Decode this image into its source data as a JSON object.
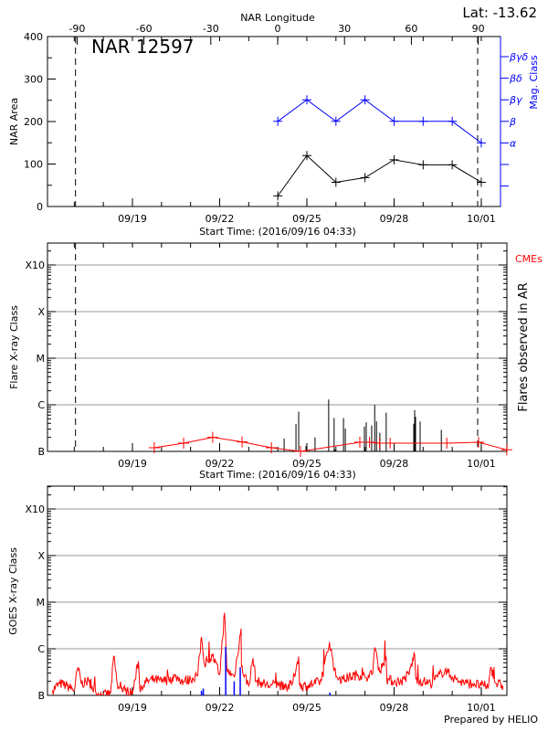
{
  "chart_data": [
    {
      "type": "line",
      "title": "NAR 12597",
      "lat_label": "Lat: -13.62",
      "xlabel": "Start Time: (2016/09/16 04:33)",
      "ylabel": "NAR Area",
      "y2label": "Mag. Class",
      "top_axis_label": "NAR Longitude",
      "top_axis_ticks": [
        "-90",
        "-60",
        "-30",
        "0",
        "30",
        "60",
        "90"
      ],
      "top_axis_values": [
        -90,
        -60,
        -30,
        0,
        30,
        60,
        90
      ],
      "x_tick_labels": [
        "09/19",
        "09/22",
        "09/25",
        "09/28",
        "10/01"
      ],
      "x_tick_dates": [
        "2016-09-19T00:00",
        "2016-09-22T00:00",
        "2016-09-25T00:00",
        "2016-09-28T00:00",
        "2016-10-01T00:00"
      ],
      "y_tick_labels": [
        "0",
        "100",
        "200",
        "300",
        "400"
      ],
      "ylim": [
        0,
        400
      ],
      "y2_classes": [
        "βγδ",
        "βδ",
        "βγ",
        "β",
        "α",
        "",
        ""
      ],
      "limb_lines": [
        "2016-09-17T01:00",
        "2016-09-30T21:00"
      ],
      "series": [
        {
          "name": "NAR Area",
          "color": "#000000",
          "x": [
            "2016-09-24T00:00",
            "2016-09-25T00:00",
            "2016-09-26T00:00",
            "2016-09-27T00:00",
            "2016-09-28T00:00",
            "2016-09-29T00:00",
            "2016-09-30T00:00",
            "2016-10-01T00:00"
          ],
          "values": [
            25,
            120,
            57,
            68,
            110,
            98,
            98,
            57
          ]
        },
        {
          "name": "Mag. Class",
          "color": "#0000ff",
          "x": [
            "2016-09-24T00:00",
            "2016-09-25T00:00",
            "2016-09-26T00:00",
            "2016-09-27T00:00",
            "2016-09-28T00:00",
            "2016-09-29T00:00",
            "2016-09-30T00:00",
            "2016-10-01T00:00"
          ],
          "values": [
            "β",
            "βγ",
            "β",
            "βγ",
            "β",
            "β",
            "β",
            "α"
          ]
        }
      ]
    },
    {
      "type": "bar",
      "xlabel": "Start Time: (2016/09/16 04:33)",
      "ylabel": "Flare X-ray Class",
      "y2label": "Flares observed in AR",
      "cme_label": "CMEs",
      "x_tick_labels": [
        "09/19",
        "09/22",
        "09/25",
        "09/28",
        "10/01"
      ],
      "y_tick_labels": [
        "B",
        "C",
        "M",
        "X",
        "X10"
      ],
      "y_scale": "log",
      "ylim": [
        1e-07,
        0.001
      ],
      "grid": true,
      "limb_lines": [
        "2016-09-17T01:00",
        "2016-09-30T21:00"
      ],
      "flares": {
        "color": "#000000",
        "x": [
          "2016-09-24T05:15",
          "2016-09-24T15:00",
          "2016-09-24T17:15",
          "2016-09-24T23:15",
          "2016-09-25T06:45",
          "2016-09-25T18:00",
          "2016-09-25T22:30",
          "2016-09-25T23:15",
          "2016-09-26T06:15",
          "2016-09-26T07:45",
          "2016-09-26T23:30",
          "2016-09-27T01:00",
          "2016-09-27T05:30",
          "2016-09-27T08:00",
          "2016-09-27T09:30",
          "2016-09-27T12:15",
          "2016-09-27T17:30",
          "2016-09-28T16:15",
          "2016-09-28T17:00",
          "2016-09-28T17:45",
          "2016-09-28T21:30",
          "2016-09-29T15:00"
        ],
        "values": [
          1.9e-07,
          3.9e-07,
          7.1e-07,
          1.3e-07,
          2e-07,
          1.3e-06,
          5.2e-07,
          1.1e-07,
          5.2e-07,
          3.1e-07,
          3.4e-07,
          4.2e-07,
          3.6e-07,
          1e-06,
          4.4e-07,
          2.5e-07,
          6.8e-07,
          3.9e-07,
          7.7e-07,
          5.5e-07,
          4.4e-07,
          2.9e-07
        ]
      },
      "cmes": {
        "name": "CMEs",
        "color": "#ff0000",
        "x": [
          "2016-09-19T18:00",
          "2016-09-20T18:15",
          "2016-09-21T18:15",
          "2016-09-22T18:30",
          "2016-09-23T18:45",
          "2016-09-24T18:45",
          "2016-09-26T19:45",
          "2016-09-27T03:45",
          "2016-09-27T12:00",
          "2016-09-27T20:45",
          "2016-09-29T19:30",
          "2016-09-30T21:45",
          "2016-10-01T21:00"
        ],
        "values": [
          1.2e-07,
          1.5e-07,
          2e-07,
          1.6e-07,
          1.2e-07,
          1e-07,
          1.57e-07,
          1.57e-07,
          1.5e-07,
          1.5e-07,
          1.5e-07,
          1.57e-07,
          1.08e-07
        ]
      }
    },
    {
      "type": "line",
      "ylabel": "GOES X-ray Class",
      "x_tick_labels": [
        "09/19",
        "09/22",
        "09/25",
        "09/28",
        "10/01"
      ],
      "y_tick_labels": [
        "B",
        "C",
        "M",
        "X",
        "X10"
      ],
      "y_scale": "log",
      "ylim": [
        1e-07,
        0.001
      ],
      "grid": true,
      "footer": "Prepared by HELIO",
      "goes_long": {
        "color": "#ff0000",
        "x": [
          "2016-09-16T06:00",
          "2016-09-16T12:00",
          "2016-09-16T18:00",
          "2016-09-17T00:00",
          "2016-09-17T03:00",
          "2016-09-17T06:00",
          "2016-09-17T12:00",
          "2016-09-17T18:00",
          "2016-09-18T00:00",
          "2016-09-18T06:00",
          "2016-09-18T08:30",
          "2016-09-18T12:00",
          "2016-09-18T18:00",
          "2016-09-19T00:00",
          "2016-09-19T05:00",
          "2016-09-19T06:00",
          "2016-09-19T12:00",
          "2016-09-19T18:00",
          "2016-09-20T00:00",
          "2016-09-20T06:00",
          "2016-09-20T12:00",
          "2016-09-20T18:00",
          "2016-09-21T00:00",
          "2016-09-21T06:00",
          "2016-09-21T09:00",
          "2016-09-21T12:00",
          "2016-09-21T18:00",
          "2016-09-22T00:00",
          "2016-09-22T04:00",
          "2016-09-22T06:00",
          "2016-09-22T12:00",
          "2016-09-22T17:45",
          "2016-09-22T18:00",
          "2016-09-23T00:00",
          "2016-09-23T03:30",
          "2016-09-23T06:00",
          "2016-09-23T12:00",
          "2016-09-23T18:00",
          "2016-09-24T00:00",
          "2016-09-24T06:00",
          "2016-09-24T12:00",
          "2016-09-24T17:15",
          "2016-09-24T18:00",
          "2016-09-25T00:00",
          "2016-09-25T06:00",
          "2016-09-25T12:00",
          "2016-09-25T18:45",
          "2016-09-26T00:00",
          "2016-09-26T06:00",
          "2016-09-26T12:00",
          "2016-09-26T18:00",
          "2016-09-27T00:00",
          "2016-09-27T06:00",
          "2016-09-27T08:00",
          "2016-09-27T12:00",
          "2016-09-27T17:30",
          "2016-09-27T18:00",
          "2016-09-28T00:00",
          "2016-09-28T06:00",
          "2016-09-28T12:00",
          "2016-09-28T17:00",
          "2016-09-28T18:00",
          "2016-09-29T00:00",
          "2016-09-29T06:00",
          "2016-09-29T12:00",
          "2016-09-29T18:00",
          "2016-09-30T00:00",
          "2016-09-30T06:00",
          "2016-09-30T12:00",
          "2016-09-30T18:00",
          "2016-10-01T00:00",
          "2016-10-01T06:00",
          "2016-10-01T08:00",
          "2016-10-01T12:00",
          "2016-10-01T18:00"
        ],
        "values": [
          1.3e-07,
          1.8e-07,
          1.6e-07,
          1.3e-07,
          4e-07,
          1.8e-07,
          2e-07,
          1.1e-07,
          1e-07,
          1.1e-07,
          6.9e-07,
          1.4e-07,
          1.3e-07,
          1.1e-07,
          5.4e-07,
          1.4e-07,
          2e-07,
          2.2e-07,
          2e-07,
          2.2e-07,
          2.5e-07,
          2e-07,
          2.2e-07,
          2.8e-07,
          1.8e-06,
          4e-07,
          7.1e-07,
          2.8e-07,
          5.9e-06,
          3.5e-07,
          2.5e-07,
          2.7e-06,
          4e-07,
          1.6e-07,
          6.3e-07,
          2e-07,
          1.8e-07,
          1.6e-07,
          1.8e-07,
          1.4e-07,
          1.8e-07,
          6.8e-07,
          1.6e-07,
          1.6e-07,
          1.8e-07,
          2e-07,
          1.4e-06,
          2.5e-07,
          2.2e-07,
          2.5e-07,
          2.8e-07,
          2.5e-07,
          2.8e-07,
          1.07e-06,
          3.2e-07,
          6.8e-07,
          2.2e-07,
          2e-07,
          2e-07,
          2.8e-07,
          7.6e-07,
          2.2e-07,
          2e-07,
          1.8e-07,
          2.5e-07,
          3.5e-07,
          2.5e-07,
          2e-07,
          1.8e-07,
          1.8e-07,
          1.6e-07,
          1.6e-07,
          4e-07,
          1.8e-07,
          1.6e-07
        ]
      },
      "goes_short": {
        "color": "#0000ff",
        "x": [
          "2016-09-21T09:00",
          "2016-09-21T10:30",
          "2016-09-22T05:00",
          "2016-09-22T12:00",
          "2016-09-22T17:00",
          "2016-09-25T19:00"
        ],
        "values": [
          1.25e-07,
          1.4e-07,
          1.1e-06,
          2e-07,
          4e-07,
          1.15e-07
        ]
      }
    }
  ]
}
